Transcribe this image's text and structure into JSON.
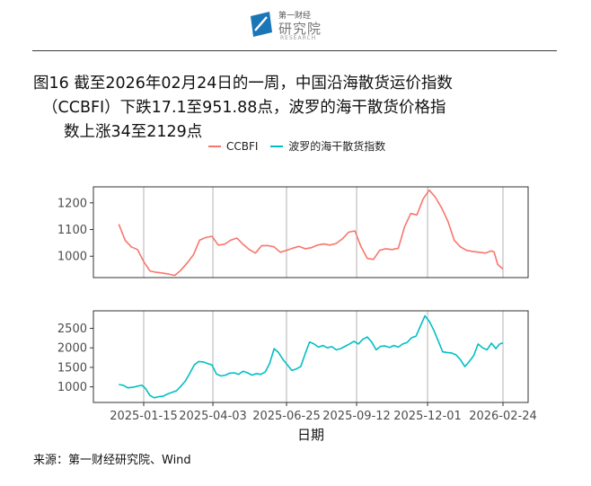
{
  "header": {
    "logo_small": "第一财经",
    "logo_name": "研究院",
    "logo_en": "RESEARCH"
  },
  "title": {
    "line1": "图16  截至2026年02月24日的一周，中国沿海散货运价指数",
    "line2": "（CCBFI）下跌17.1至951.88点，波罗的海干散货价格指",
    "line3": "数上涨34至2129点"
  },
  "source": "来源：第一财经研究院、Wind",
  "colors": {
    "ccbfi": "#F8766D",
    "bdi": "#00BFC4",
    "grid": "#b3b3b3",
    "axis_text": "#4d4d4d"
  },
  "chart_data": {
    "type": "line",
    "xlabel": "日期",
    "x_ticks": [
      "2025-01-15",
      "2025-04-03",
      "2025-06-25",
      "2025-09-12",
      "2025-12-01",
      "2026-02-24"
    ],
    "legend": [
      "CCBFI",
      "波罗的海干散货指数"
    ],
    "legend_position": "top",
    "grid": true,
    "panels": [
      {
        "series": "CCBFI",
        "ylim": [
          920,
          1260
        ],
        "yticks": [
          1000,
          1100,
          1200
        ],
        "points": [
          [
            "2024-12-18",
            1120
          ],
          [
            "2024-12-25",
            1060
          ],
          [
            "2025-01-01",
            1035
          ],
          [
            "2025-01-08",
            1025
          ],
          [
            "2025-01-15",
            980
          ],
          [
            "2025-01-22",
            945
          ],
          [
            "2025-01-29",
            940
          ],
          [
            "2025-02-05",
            937
          ],
          [
            "2025-02-12",
            933
          ],
          [
            "2025-02-19",
            928
          ],
          [
            "2025-02-26",
            948
          ],
          [
            "2025-03-05",
            975
          ],
          [
            "2025-03-12",
            1005
          ],
          [
            "2025-03-19",
            1060
          ],
          [
            "2025-03-26",
            1070
          ],
          [
            "2025-04-02",
            1075
          ],
          [
            "2025-04-09",
            1042
          ],
          [
            "2025-04-16",
            1045
          ],
          [
            "2025-04-23",
            1060
          ],
          [
            "2025-04-30",
            1068
          ],
          [
            "2025-05-07",
            1045
          ],
          [
            "2025-05-14",
            1025
          ],
          [
            "2025-05-21",
            1012
          ],
          [
            "2025-05-28",
            1040
          ],
          [
            "2025-06-04",
            1040
          ],
          [
            "2025-06-11",
            1035
          ],
          [
            "2025-06-18",
            1015
          ],
          [
            "2025-06-25",
            1022
          ],
          [
            "2025-07-02",
            1030
          ],
          [
            "2025-07-09",
            1037
          ],
          [
            "2025-07-16",
            1028
          ],
          [
            "2025-07-23",
            1032
          ],
          [
            "2025-07-30",
            1042
          ],
          [
            "2025-08-06",
            1046
          ],
          [
            "2025-08-13",
            1042
          ],
          [
            "2025-08-20",
            1048
          ],
          [
            "2025-08-27",
            1065
          ],
          [
            "2025-09-03",
            1090
          ],
          [
            "2025-09-10",
            1095
          ],
          [
            "2025-09-17",
            1035
          ],
          [
            "2025-09-24",
            992
          ],
          [
            "2025-10-01",
            988
          ],
          [
            "2025-10-08",
            1022
          ],
          [
            "2025-10-15",
            1028
          ],
          [
            "2025-10-22",
            1025
          ],
          [
            "2025-10-29",
            1030
          ],
          [
            "2025-11-05",
            1110
          ],
          [
            "2025-11-12",
            1160
          ],
          [
            "2025-11-19",
            1155
          ],
          [
            "2025-11-26",
            1215
          ],
          [
            "2025-12-03",
            1248
          ],
          [
            "2025-12-10",
            1220
          ],
          [
            "2025-12-17",
            1180
          ],
          [
            "2025-12-24",
            1130
          ],
          [
            "2025-12-31",
            1060
          ],
          [
            "2026-01-07",
            1035
          ],
          [
            "2026-01-14",
            1022
          ],
          [
            "2026-01-21",
            1018
          ],
          [
            "2026-01-28",
            1015
          ],
          [
            "2026-02-04",
            1012
          ],
          [
            "2026-02-11",
            1020
          ],
          [
            "2026-02-14",
            1016
          ],
          [
            "2026-02-18",
            969
          ],
          [
            "2026-02-24",
            952
          ]
        ]
      },
      {
        "series": "波罗的海干散货指数",
        "ylim": [
          600,
          2950
        ],
        "yticks": [
          1000,
          1500,
          2000,
          2500
        ],
        "points": [
          [
            "2024-12-18",
            1060
          ],
          [
            "2024-12-23",
            1040
          ],
          [
            "2024-12-28",
            975
          ],
          [
            "2025-01-03",
            990
          ],
          [
            "2025-01-08",
            1020
          ],
          [
            "2025-01-13",
            1040
          ],
          [
            "2025-01-17",
            960
          ],
          [
            "2025-01-22",
            780
          ],
          [
            "2025-01-27",
            720
          ],
          [
            "2025-02-01",
            750
          ],
          [
            "2025-02-06",
            760
          ],
          [
            "2025-02-11",
            820
          ],
          [
            "2025-02-16",
            860
          ],
          [
            "2025-02-21",
            900
          ],
          [
            "2025-02-26",
            1020
          ],
          [
            "2025-03-03",
            1150
          ],
          [
            "2025-03-08",
            1350
          ],
          [
            "2025-03-13",
            1560
          ],
          [
            "2025-03-18",
            1650
          ],
          [
            "2025-03-23",
            1640
          ],
          [
            "2025-03-28",
            1600
          ],
          [
            "2025-04-02",
            1560
          ],
          [
            "2025-04-07",
            1330
          ],
          [
            "2025-04-12",
            1280
          ],
          [
            "2025-04-17",
            1300
          ],
          [
            "2025-04-22",
            1350
          ],
          [
            "2025-04-27",
            1360
          ],
          [
            "2025-05-02",
            1320
          ],
          [
            "2025-05-07",
            1400
          ],
          [
            "2025-05-12",
            1360
          ],
          [
            "2025-05-17",
            1300
          ],
          [
            "2025-05-22",
            1340
          ],
          [
            "2025-05-27",
            1320
          ],
          [
            "2025-06-01",
            1380
          ],
          [
            "2025-06-06",
            1600
          ],
          [
            "2025-06-11",
            1980
          ],
          [
            "2025-06-16",
            1880
          ],
          [
            "2025-06-21",
            1700
          ],
          [
            "2025-06-26",
            1560
          ],
          [
            "2025-07-01",
            1420
          ],
          [
            "2025-07-06",
            1460
          ],
          [
            "2025-07-11",
            1520
          ],
          [
            "2025-07-16",
            1850
          ],
          [
            "2025-07-21",
            2150
          ],
          [
            "2025-07-26",
            2100
          ],
          [
            "2025-07-31",
            2020
          ],
          [
            "2025-08-05",
            2060
          ],
          [
            "2025-08-10",
            2000
          ],
          [
            "2025-08-15",
            2030
          ],
          [
            "2025-08-20",
            1950
          ],
          [
            "2025-08-25",
            1980
          ],
          [
            "2025-08-30",
            2040
          ],
          [
            "2025-09-04",
            2100
          ],
          [
            "2025-09-09",
            2170
          ],
          [
            "2025-09-14",
            2100
          ],
          [
            "2025-09-19",
            2220
          ],
          [
            "2025-09-24",
            2280
          ],
          [
            "2025-09-29",
            2150
          ],
          [
            "2025-10-04",
            1950
          ],
          [
            "2025-10-09",
            2040
          ],
          [
            "2025-10-14",
            2050
          ],
          [
            "2025-10-19",
            2010
          ],
          [
            "2025-10-24",
            2060
          ],
          [
            "2025-10-29",
            2020
          ],
          [
            "2025-11-03",
            2100
          ],
          [
            "2025-11-08",
            2140
          ],
          [
            "2025-11-13",
            2260
          ],
          [
            "2025-11-18",
            2300
          ],
          [
            "2025-11-23",
            2560
          ],
          [
            "2025-11-28",
            2820
          ],
          [
            "2025-12-03",
            2680
          ],
          [
            "2025-12-08",
            2450
          ],
          [
            "2025-12-13",
            2180
          ],
          [
            "2025-12-18",
            1900
          ],
          [
            "2025-12-23",
            1880
          ],
          [
            "2025-12-28",
            1870
          ],
          [
            "2026-01-02",
            1820
          ],
          [
            "2026-01-07",
            1700
          ],
          [
            "2026-01-12",
            1520
          ],
          [
            "2026-01-17",
            1650
          ],
          [
            "2026-01-22",
            1800
          ],
          [
            "2026-01-27",
            2100
          ],
          [
            "2026-02-01",
            2000
          ],
          [
            "2026-02-06",
            1950
          ],
          [
            "2026-02-11",
            2120
          ],
          [
            "2026-02-16",
            1980
          ],
          [
            "2026-02-20",
            2095
          ],
          [
            "2026-02-24",
            2129
          ]
        ]
      }
    ]
  }
}
